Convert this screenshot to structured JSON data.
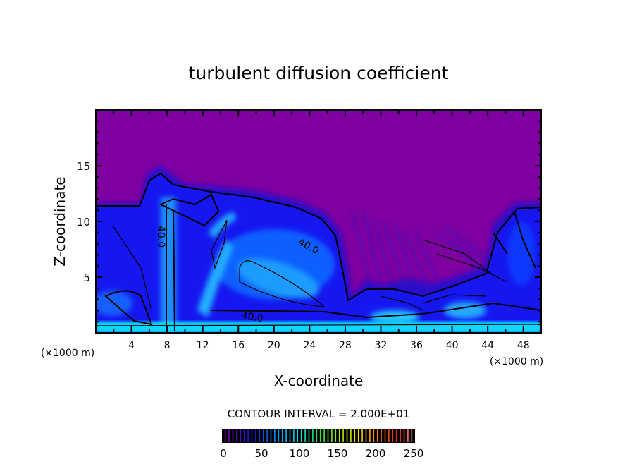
{
  "chart_data": {
    "type": "heatmap",
    "title": "turbulent diffusion coefficient",
    "xlabel": "X-coordinate",
    "ylabel": "Z-coordinate",
    "x_unit": "(×1000 m)",
    "x_unit_right": "(×1000 m)",
    "xlim": [
      0,
      50
    ],
    "ylim": [
      0,
      20
    ],
    "x_ticks": [
      4,
      8,
      12,
      16,
      20,
      24,
      28,
      32,
      36,
      40,
      44,
      48
    ],
    "y_ticks": [
      5,
      10,
      15
    ],
    "contour_interval_text": "CONTOUR INTERVAL = 2.000E+01",
    "contour_labels": [
      "40.0",
      "40.0",
      "40.0"
    ],
    "colorbar": {
      "range": [
        0,
        250
      ],
      "ticks": [
        0,
        50,
        100,
        150,
        200,
        250
      ]
    },
    "colors": {
      "background_field": "#7f00a0",
      "low": "#1010e0",
      "mid": "#0a8cff",
      "high": "#00e0ff"
    }
  }
}
